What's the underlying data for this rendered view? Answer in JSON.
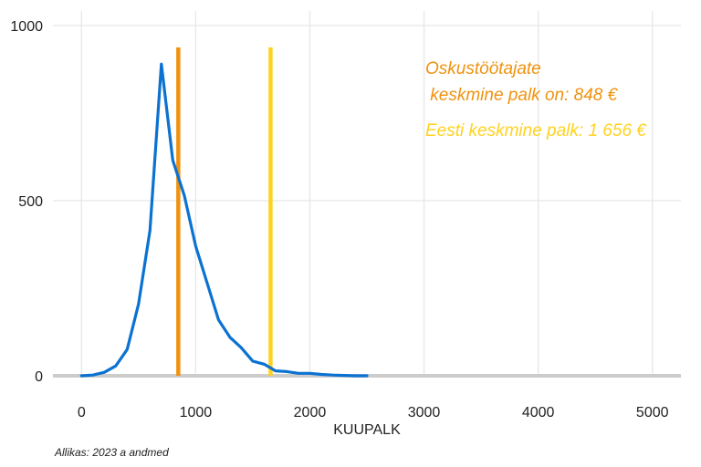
{
  "chart_data": {
    "type": "line",
    "xlabel": "KUUPALK",
    "ylabel": "",
    "xlim": [
      -250,
      5250
    ],
    "ylim": [
      0,
      1000
    ],
    "x_ticks": [
      0,
      1000,
      2000,
      3000,
      4000,
      5000
    ],
    "y_ticks": [
      0,
      500,
      1000
    ],
    "grid": true,
    "colors": {
      "series": "#0b72d1",
      "vline_occupation": "#f0920f",
      "vline_estonia": "#ffd21f",
      "baseline": "#cccccc"
    },
    "series": [
      {
        "x": [
          0,
          100,
          200,
          300,
          400,
          500,
          600,
          700,
          800,
          900,
          1000,
          1100,
          1200,
          1300,
          1400,
          1500,
          1600,
          1700,
          1800,
          1900,
          2000,
          2100,
          2200,
          2300,
          2400,
          2500
        ],
        "values": [
          0,
          2,
          10,
          28,
          75,
          205,
          415,
          890,
          615,
          515,
          370,
          265,
          160,
          110,
          80,
          42,
          33,
          14,
          12,
          7,
          7,
          4,
          2,
          1,
          0,
          0
        ]
      }
    ],
    "vlines": [
      {
        "x": 848,
        "color": "#f0920f"
      },
      {
        "x": 1656,
        "color": "#ffd21f"
      }
    ],
    "annotations": [
      {
        "lines": [
          "Oskustöötajate",
          " keskmine palk on: 848 €"
        ],
        "color": "#f0920f"
      },
      {
        "lines": [
          "Eesti keskmine palk: 1 656 €"
        ],
        "color": "#ffd21f"
      }
    ]
  },
  "source": "Allikas: 2023 a andmed"
}
